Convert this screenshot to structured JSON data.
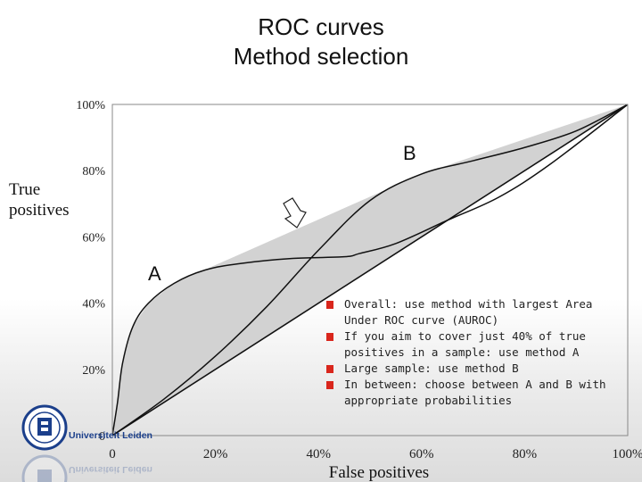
{
  "header": {
    "title_line1": "ROC curves",
    "title_line2": "Method selection"
  },
  "chart_data": {
    "type": "line",
    "xlabel": "False positives",
    "ylabel": "True positives",
    "xlim": [
      0,
      100
    ],
    "ylim": [
      0,
      100
    ],
    "x_ticks": [
      "0",
      "20%",
      "40%",
      "60%",
      "80%",
      "100%"
    ],
    "y_ticks": [
      "0",
      "20%",
      "40%",
      "60%",
      "80%",
      "100%"
    ],
    "grid": false,
    "series": [
      {
        "name": "A",
        "x": [
          0,
          1,
          2,
          4,
          7,
          12,
          18,
          25,
          35,
          45,
          48,
          55,
          65,
          75,
          85,
          100
        ],
        "y": [
          0,
          10,
          22,
          33,
          40,
          46,
          50,
          52,
          53.5,
          54,
          55,
          58,
          65,
          72,
          82,
          100
        ]
      },
      {
        "name": "B",
        "x": [
          0,
          10,
          20,
          30,
          40,
          50,
          60,
          70,
          80,
          90,
          100
        ],
        "y": [
          0,
          11,
          24,
          39,
          56,
          71,
          79,
          83,
          87,
          92,
          100
        ]
      },
      {
        "name": "diagonal",
        "x": [
          0,
          100
        ],
        "y": [
          0,
          100
        ]
      }
    ],
    "annotations": [
      "A",
      "B"
    ]
  },
  "bullets": [
    "Overall: use method with largest  Area Under ROC curve (AUROC)",
    "If you aim to cover just 40% of true positives in a sample: use method A",
    "Large sample: use method B",
    "In between: choose between A and B with appropriate probabilities"
  ],
  "logo": {
    "text": "Universiteit Leiden",
    "color": "#1b3f8b"
  },
  "colors": {
    "bullet": "#d9261c",
    "hull_fill": "#d2d2d2",
    "curve": "#111111"
  }
}
